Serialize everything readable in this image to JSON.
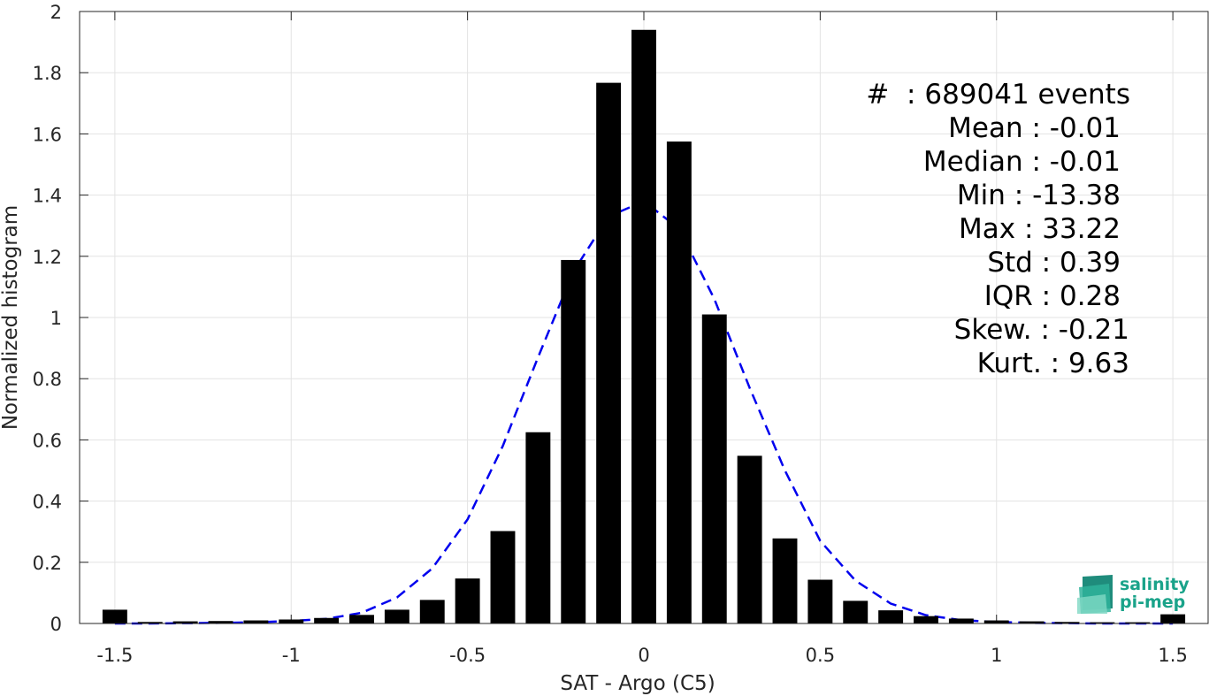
{
  "chart_data": {
    "type": "bar",
    "xlabel": "SAT - Argo (C5)",
    "ylabel": "Normalized histogram",
    "xlim": [
      -1.6,
      1.6
    ],
    "ylim": [
      0,
      2
    ],
    "grid": true,
    "x_ticks": [
      "-1.5",
      "-1",
      "-0.5",
      "0",
      "0.5",
      "1",
      "1.5"
    ],
    "y_ticks": [
      "0",
      "0.2",
      "0.4",
      "0.6",
      "0.8",
      "1",
      "1.2",
      "1.4",
      "1.6",
      "1.8",
      "2"
    ],
    "bar_width": 0.07,
    "bars": {
      "x": [
        -1.5,
        -1.4,
        -1.3,
        -1.2,
        -1.1,
        -1.0,
        -0.9,
        -0.8,
        -0.7,
        -0.6,
        -0.5,
        -0.4,
        -0.3,
        -0.2,
        -0.1,
        0.0,
        0.1,
        0.2,
        0.3,
        0.4,
        0.5,
        0.6,
        0.7,
        0.8,
        0.9,
        1.0,
        1.1,
        1.2,
        1.3,
        1.4,
        1.5
      ],
      "values": [
        0.045,
        0.005,
        0.007,
        0.008,
        0.01,
        0.013,
        0.018,
        0.028,
        0.045,
        0.077,
        0.147,
        0.302,
        0.625,
        1.188,
        1.767,
        1.94,
        1.575,
        1.01,
        0.548,
        0.278,
        0.143,
        0.074,
        0.043,
        0.024,
        0.016,
        0.01,
        0.007,
        0.005,
        0.004,
        0.004,
        0.03
      ]
    },
    "fit_curve": {
      "color": "#0000ee",
      "style": "dashed",
      "x": [
        -1.5,
        -1.4,
        -1.3,
        -1.2,
        -1.1,
        -1.0,
        -0.9,
        -0.8,
        -0.7,
        -0.6,
        -0.5,
        -0.4,
        -0.3,
        -0.2,
        -0.1,
        0.0,
        0.1,
        0.2,
        0.3,
        0.4,
        0.5,
        0.6,
        0.7,
        0.8,
        0.9,
        1.0,
        1.1,
        1.2,
        1.3,
        1.4,
        1.5
      ],
      "y": [
        0.0,
        0.0,
        0.001,
        0.002,
        0.004,
        0.008,
        0.015,
        0.035,
        0.085,
        0.18,
        0.34,
        0.58,
        0.87,
        1.15,
        1.33,
        1.38,
        1.29,
        1.06,
        0.77,
        0.5,
        0.27,
        0.14,
        0.065,
        0.027,
        0.011,
        0.005,
        0.002,
        0.001,
        0.0,
        0.0,
        0.0
      ]
    },
    "bar_color": "#000000",
    "legend_placement": "top-right"
  },
  "stats": [
    {
      "label": "#  : 689041 events"
    },
    {
      "label": "Mean : -0.01"
    },
    {
      "label": "Median : -0.01"
    },
    {
      "label": "Min : -13.38"
    },
    {
      "label": "Max : 33.22"
    },
    {
      "label": "Std : 0.39"
    },
    {
      "label": "IQR : 0.28"
    },
    {
      "label": "Skew. : -0.21"
    },
    {
      "label": "Kurt. : 9.63"
    }
  ],
  "logo": {
    "line1": "salinity",
    "line2": "pi-mep",
    "color": "#1aa38a"
  }
}
